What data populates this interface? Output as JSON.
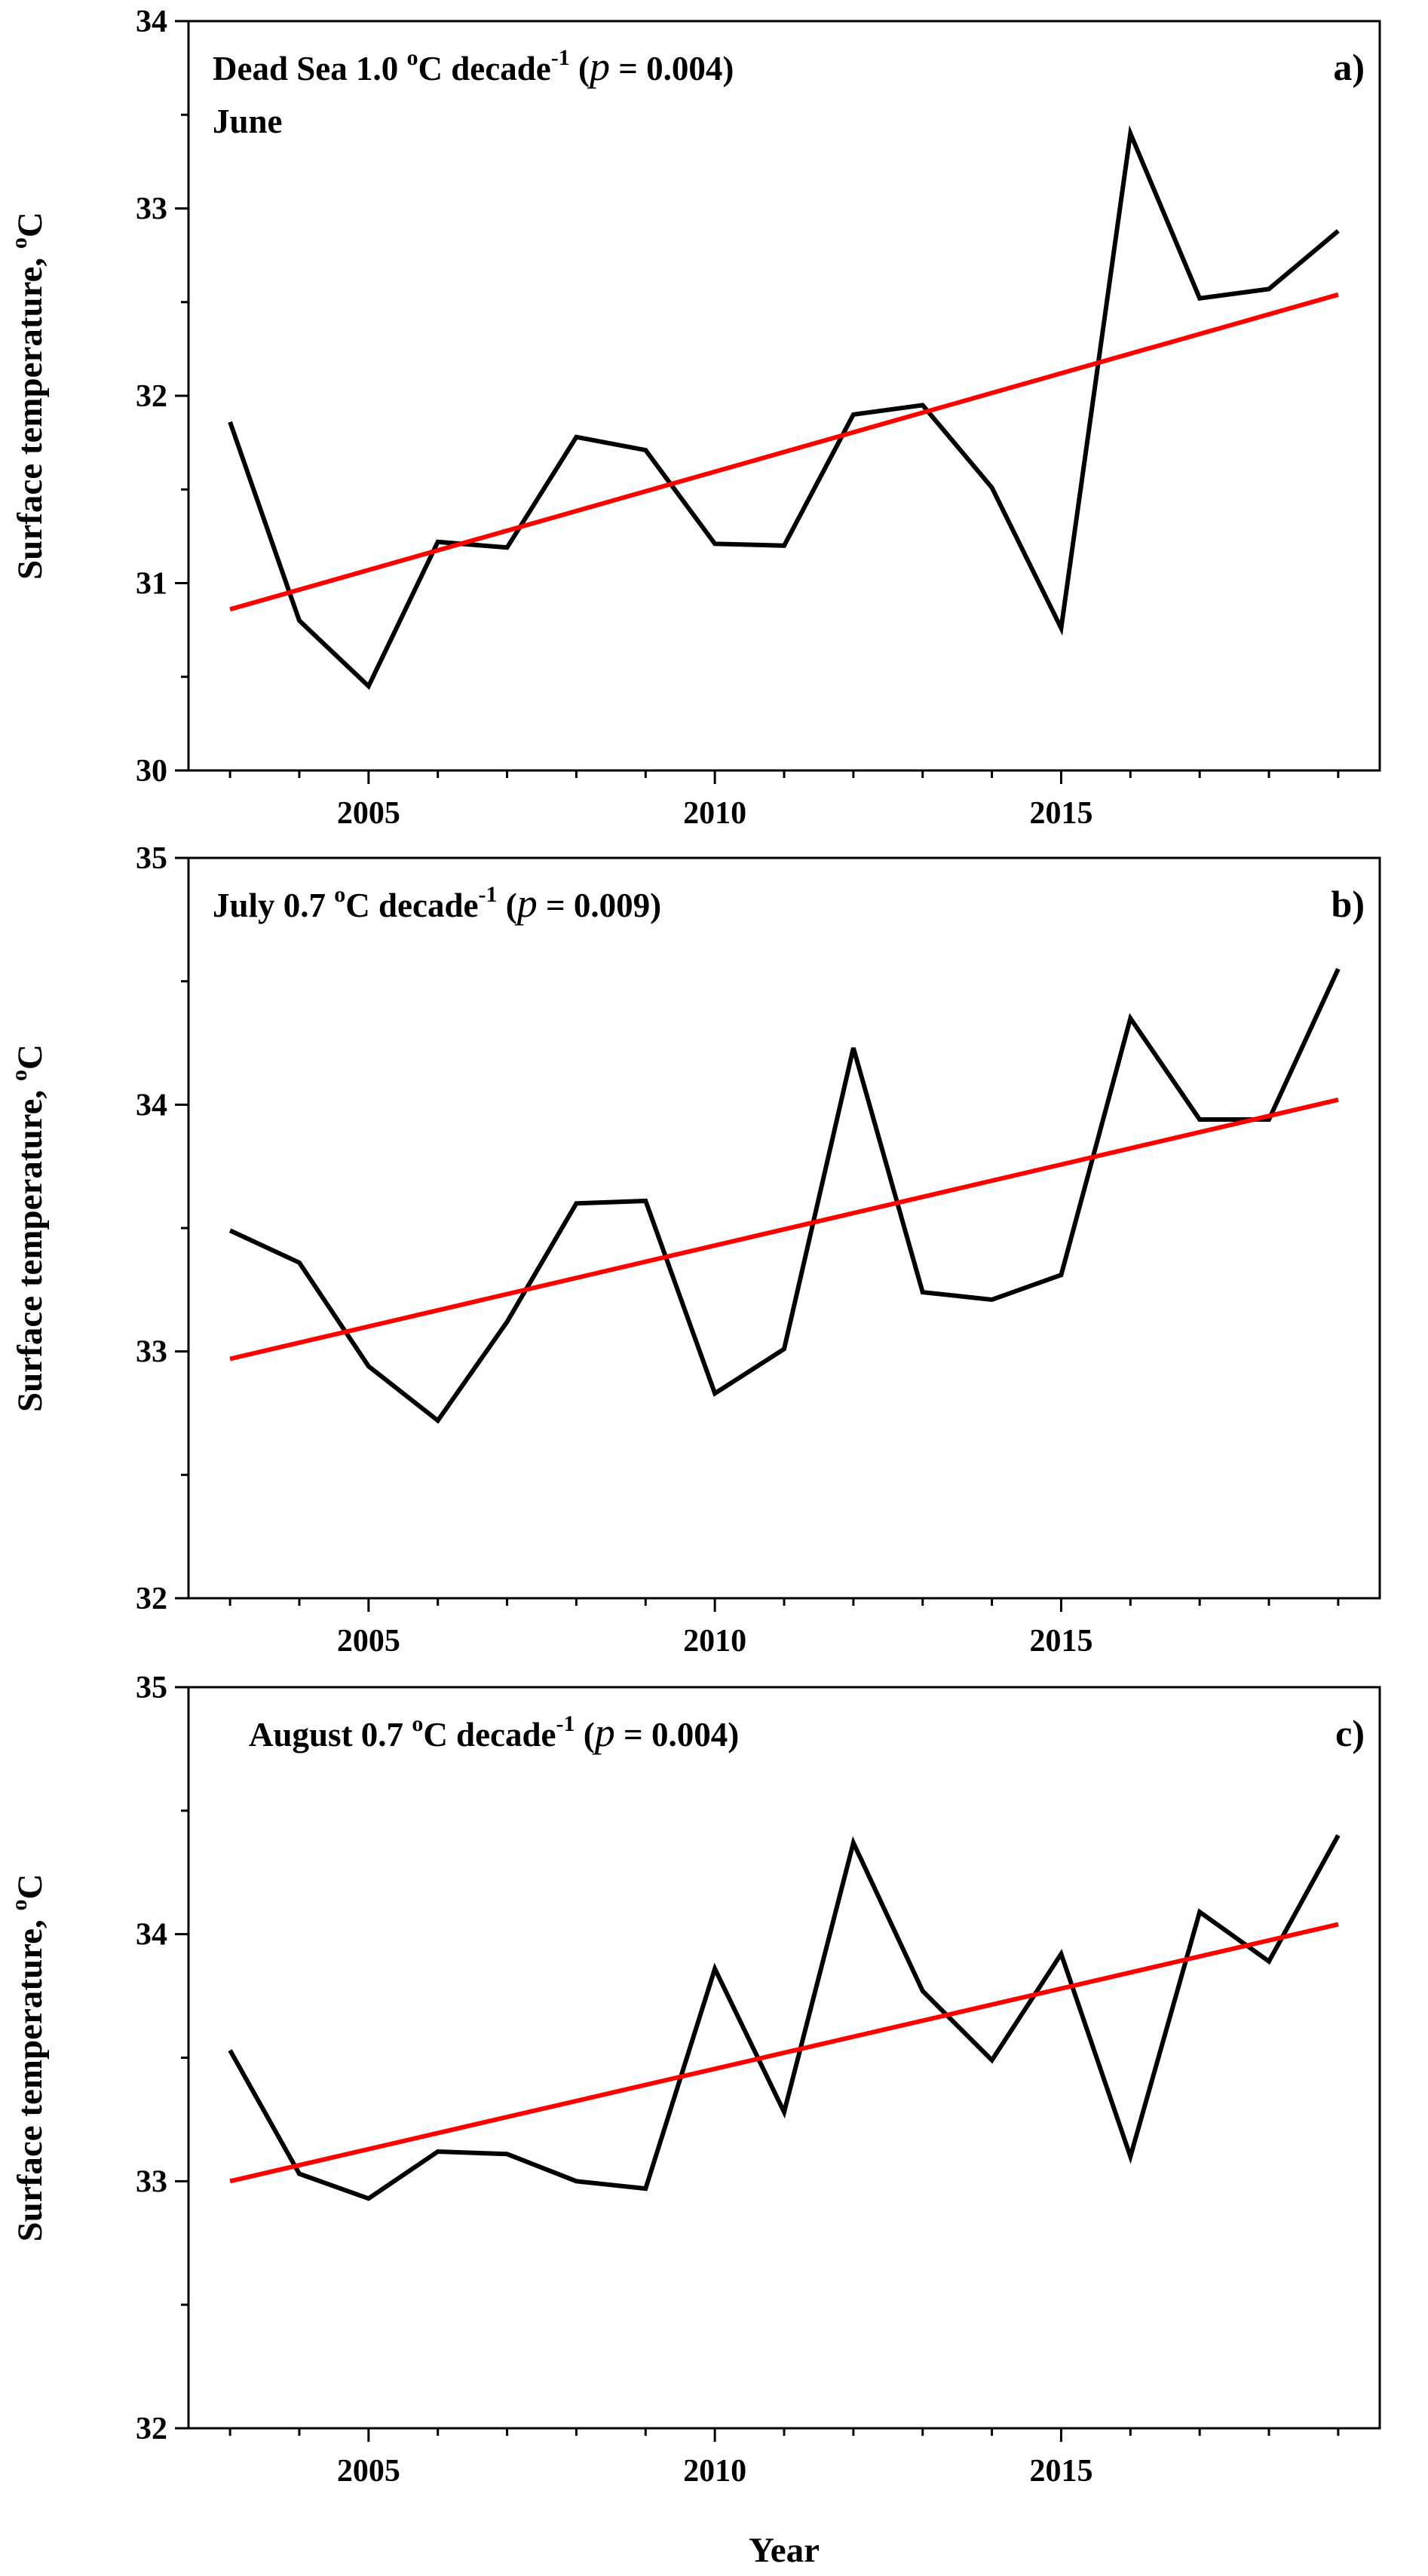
{
  "chart_data": [
    {
      "type": "line",
      "panel_label": "a)",
      "annotation": {
        "prefix": "Dead Sea",
        "trend": "1.0",
        "unit_deg": "o",
        "unit_c": "C decade",
        "unit_exp": "-1",
        "p_symbol": "p",
        "p_rest": "= 0.004)",
        "p_open": "(",
        "line2": "June"
      },
      "x": [
        2003,
        2004,
        2005,
        2006,
        2007,
        2008,
        2009,
        2010,
        2011,
        2012,
        2013,
        2014,
        2015,
        2016,
        2017,
        2018,
        2019
      ],
      "series": [
        {
          "name": "Surface temperature",
          "color": "#000000",
          "values": [
            31.86,
            30.8,
            30.45,
            31.22,
            31.19,
            31.78,
            31.71,
            31.21,
            31.2,
            31.9,
            31.95,
            31.51,
            30.76,
            33.4,
            32.52,
            32.57,
            32.88
          ]
        },
        {
          "name": "Linear trend",
          "color": "#ff0000",
          "values": [
            30.86,
            32.54
          ],
          "x": [
            2003,
            2019
          ]
        }
      ],
      "xlim": [
        2002.4,
        2019.6
      ],
      "ylim": [
        30,
        34
      ],
      "yticks": [
        "30",
        "31",
        "32",
        "33",
        "34"
      ],
      "xticks": [
        "2005",
        "2010",
        "2015"
      ],
      "ylabel": "Surface  temperature,",
      "ylabel_deg": "o",
      "ylabel_c": "C",
      "xlabel": ""
    },
    {
      "type": "line",
      "panel_label": "b)",
      "annotation": {
        "prefix": "July",
        "trend": "0.7",
        "unit_deg": "o",
        "unit_c": "C decade",
        "unit_exp": "-1",
        "p_symbol": "p",
        "p_rest": "= 0.009)",
        "p_open": "(",
        "line2": ""
      },
      "x": [
        2003,
        2004,
        2005,
        2006,
        2007,
        2008,
        2009,
        2010,
        2011,
        2012,
        2013,
        2014,
        2015,
        2016,
        2017,
        2018,
        2019
      ],
      "series": [
        {
          "name": "Surface temperature",
          "color": "#000000",
          "values": [
            33.49,
            33.36,
            32.94,
            32.72,
            33.12,
            33.6,
            33.61,
            32.83,
            33.01,
            34.23,
            33.24,
            33.21,
            33.31,
            34.35,
            33.94,
            33.94,
            34.55
          ]
        },
        {
          "name": "Linear trend",
          "color": "#ff0000",
          "values": [
            32.97,
            34.02
          ],
          "x": [
            2003,
            2019
          ]
        }
      ],
      "xlim": [
        2002.4,
        2019.6
      ],
      "ylim": [
        32,
        35
      ],
      "yticks": [
        "32",
        "33",
        "34",
        "35"
      ],
      "xticks": [
        "2005",
        "2010",
        "2015"
      ],
      "ylabel": "Surface  temperature,",
      "ylabel_deg": "o",
      "ylabel_c": "C",
      "xlabel": ""
    },
    {
      "type": "line",
      "panel_label": "c)",
      "annotation": {
        "prefix": "August",
        "trend": "0.7",
        "unit_deg": "o",
        "unit_c": "C decade",
        "unit_exp": "-1",
        "p_symbol": "p",
        "p_rest": "= 0.004)",
        "p_open": "(",
        "line2": ""
      },
      "x": [
        2003,
        2004,
        2005,
        2006,
        2007,
        2008,
        2009,
        2010,
        2011,
        2012,
        2013,
        2014,
        2015,
        2016,
        2017,
        2018,
        2019
      ],
      "series": [
        {
          "name": "Surface temperature",
          "color": "#000000",
          "values": [
            33.53,
            33.03,
            32.93,
            33.12,
            33.11,
            33.0,
            32.97,
            33.86,
            33.28,
            34.37,
            33.77,
            33.49,
            33.92,
            33.1,
            34.09,
            33.89,
            34.4
          ]
        },
        {
          "name": "Linear trend",
          "color": "#ff0000",
          "values": [
            33.0,
            34.04
          ],
          "x": [
            2003,
            2019
          ]
        }
      ],
      "xlim": [
        2002.4,
        2019.6
      ],
      "ylim": [
        32,
        35
      ],
      "yticks": [
        "32",
        "33",
        "34",
        "35"
      ],
      "xticks": [
        "2005",
        "2010",
        "2015"
      ],
      "ylabel": "Surface  temperature,",
      "ylabel_deg": "o",
      "ylabel_c": "C",
      "xlabel": "Year"
    }
  ]
}
